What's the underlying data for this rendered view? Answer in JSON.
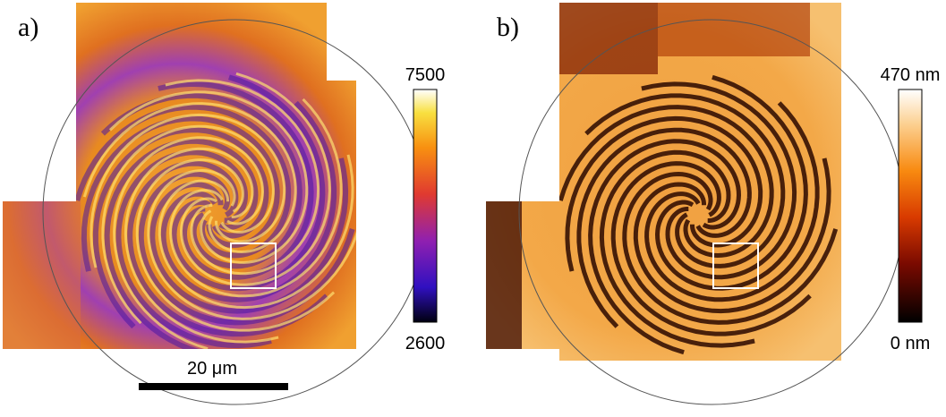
{
  "panels": [
    {
      "label": "a)",
      "colorbar": {
        "max_label": "7500",
        "min_label": "2600"
      },
      "scale_bar": "20 μm"
    },
    {
      "label": "b)",
      "colorbar": {
        "max_label": "470 nm",
        "min_label": "0 nm"
      }
    }
  ]
}
